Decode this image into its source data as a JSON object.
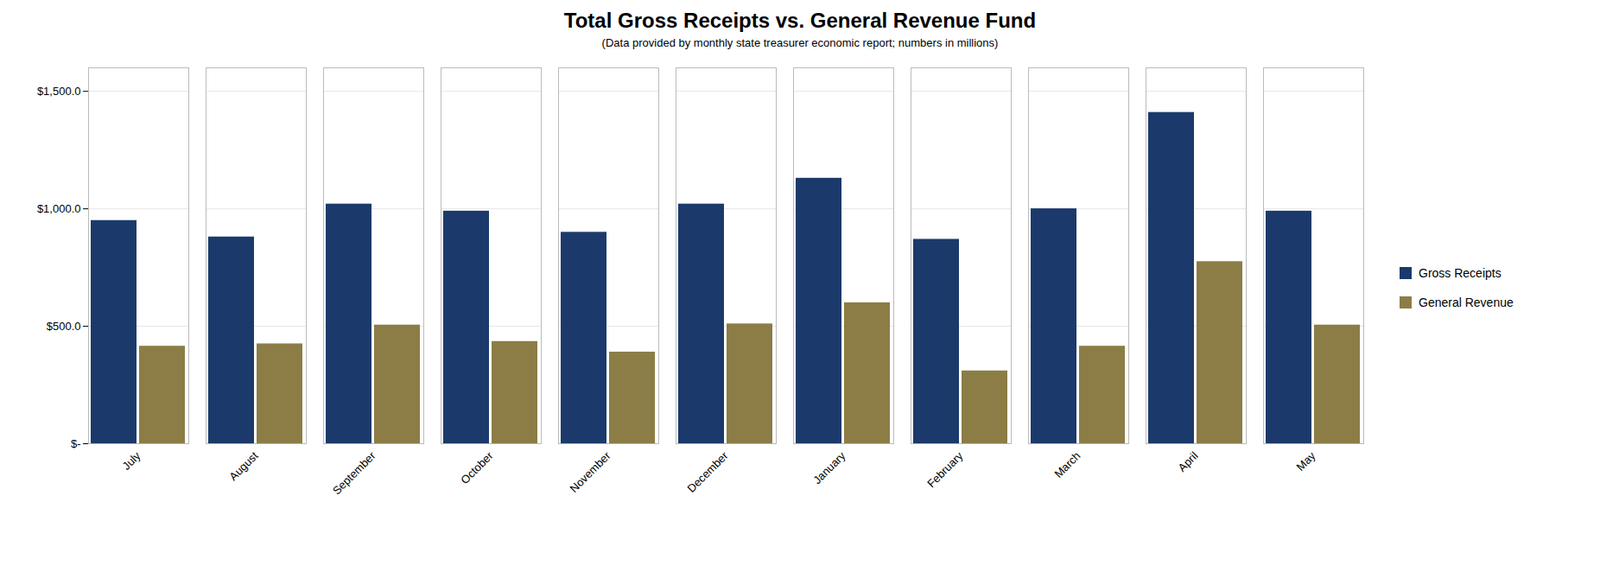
{
  "chart_data": {
    "type": "bar",
    "title": "Total Gross Receipts vs. General Revenue Fund",
    "subtitle": "(Data provided by monthly state treasurer economic report; numbers in millions)",
    "categories": [
      "July",
      "August",
      "September",
      "October",
      "November",
      "December",
      "January",
      "February",
      "March",
      "April",
      "May"
    ],
    "series": [
      {
        "name": "Gross Receipts",
        "color": "#1b3a6b",
        "values": [
          950,
          880,
          1020,
          990,
          900,
          1020,
          1130,
          870,
          1000,
          1410,
          990
        ]
      },
      {
        "name": "General Revenue",
        "color": "#8b7d45",
        "values": [
          415,
          425,
          505,
          435,
          390,
          510,
          600,
          310,
          415,
          775,
          505
        ]
      }
    ],
    "ylim": [
      0,
      1600
    ],
    "yticks": [
      {
        "value": 0,
        "label": "$-"
      },
      {
        "value": 500,
        "label": "$500.0"
      },
      {
        "value": 1000,
        "label": "$1,000.0"
      },
      {
        "value": 1500,
        "label": "$1,500.0"
      }
    ],
    "grid": true,
    "legend": "right"
  }
}
